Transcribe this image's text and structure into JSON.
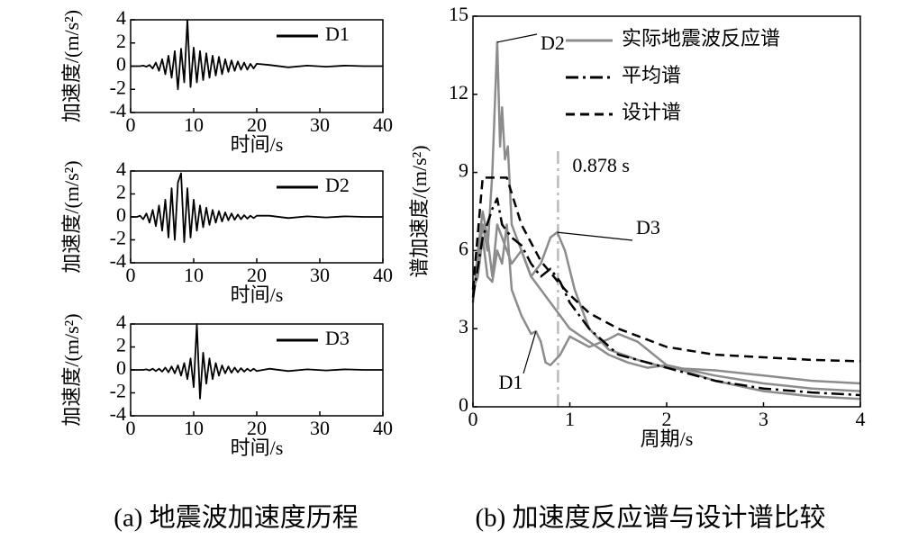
{
  "chart_data": [
    {
      "type": "line",
      "xlabel": "时间/s",
      "ylabel": "加速度/(m/s²)",
      "legend": "upper right",
      "xlim": [
        0,
        40
      ],
      "xticks": [
        0,
        10,
        20,
        30,
        40
      ],
      "ylim": [
        -4,
        4
      ],
      "yticks": [
        4,
        2,
        0,
        -2,
        -4
      ],
      "x": [
        0,
        0.5,
        1,
        1.5,
        2,
        2.5,
        3,
        3.5,
        4,
        4.5,
        5,
        5.5,
        6,
        6.5,
        7,
        7.5,
        8,
        8.5,
        9,
        9.5,
        10,
        10.5,
        11,
        11.5,
        12,
        12.5,
        13,
        13.5,
        14,
        14.5,
        15,
        15.5,
        16,
        16.5,
        17,
        17.5,
        18,
        18.5,
        19,
        19.5,
        20,
        22,
        25,
        28,
        31,
        34,
        37,
        40
      ],
      "series": [
        {
          "name": "D1",
          "color": "#000000",
          "values": [
            0,
            0,
            0,
            0,
            0.05,
            -0.05,
            0.1,
            -0.2,
            0.3,
            -0.4,
            0.6,
            -0.7,
            0.9,
            -1,
            1.3,
            -2,
            1.5,
            -1.4,
            4,
            -1.8,
            1.6,
            -1.4,
            1.3,
            -1.2,
            1.1,
            -1,
            0.9,
            -0.8,
            0.8,
            -0.7,
            0.6,
            -0.5,
            0.5,
            -0.4,
            0.4,
            -0.3,
            0.3,
            -0.3,
            0.2,
            -0.2,
            0.2,
            0.1,
            -0.1,
            0.05,
            -0.05,
            0.05,
            0,
            0
          ]
        }
      ]
    },
    {
      "type": "line",
      "xlabel": "时间/s",
      "ylabel": "加速度/(m/s²)",
      "legend": "upper right",
      "xlim": [
        0,
        40
      ],
      "xticks": [
        0,
        10,
        20,
        30,
        40
      ],
      "ylim": [
        -4,
        4
      ],
      "yticks": [
        4,
        2,
        0,
        -2,
        -4
      ],
      "x": [
        0,
        0.5,
        1,
        1.5,
        2,
        2.5,
        3,
        3.5,
        4,
        4.5,
        5,
        5.5,
        6,
        6.5,
        7,
        7.5,
        8,
        8.5,
        9,
        9.5,
        10,
        10.5,
        11,
        11.5,
        12,
        12.5,
        13,
        13.5,
        14,
        14.5,
        15,
        15.5,
        16,
        16.5,
        17,
        17.5,
        18,
        18.5,
        19,
        19.5,
        20,
        22,
        25,
        28,
        31,
        34,
        37,
        40
      ],
      "series": [
        {
          "name": "D2",
          "color": "#000000",
          "values": [
            0,
            0,
            0,
            0.1,
            -0.2,
            0.3,
            -0.5,
            0.6,
            -0.8,
            1,
            -1.2,
            1.5,
            -1.8,
            2.5,
            -2,
            3,
            3.8,
            -2.2,
            2.5,
            -1.8,
            1.5,
            -1.2,
            1,
            -0.9,
            0.8,
            -0.7,
            0.6,
            -0.5,
            0.5,
            -0.4,
            0.4,
            -0.3,
            0.3,
            -0.25,
            0.2,
            -0.2,
            0.15,
            -0.15,
            0.1,
            -0.1,
            0.1,
            0.1,
            -0.1,
            0.05,
            -0.05,
            0.05,
            0,
            0
          ]
        }
      ]
    },
    {
      "type": "line",
      "xlabel": "时间/s",
      "ylabel": "加速度/(m/s²)",
      "legend": "upper right",
      "xlim": [
        0,
        40
      ],
      "xticks": [
        0,
        10,
        20,
        30,
        40
      ],
      "ylim": [
        -4,
        4
      ],
      "yticks": [
        4,
        2,
        0,
        -2,
        -4
      ],
      "x": [
        0,
        0.5,
        1,
        1.5,
        2,
        2.5,
        3,
        3.5,
        4,
        4.5,
        5,
        5.5,
        6,
        6.5,
        7,
        7.5,
        8,
        8.5,
        9,
        9.5,
        10,
        10.5,
        11,
        11.5,
        12,
        12.5,
        13,
        13.5,
        14,
        14.5,
        15,
        15.5,
        16,
        16.5,
        17,
        17.5,
        18,
        18.5,
        19,
        19.5,
        20,
        22,
        25,
        28,
        31,
        34,
        37,
        40
      ],
      "series": [
        {
          "name": "D3",
          "color": "#000000",
          "values": [
            0,
            0,
            0,
            0,
            0,
            0.05,
            -0.05,
            0.1,
            -0.1,
            0.1,
            -0.15,
            0.2,
            -0.2,
            0.3,
            -0.3,
            0.4,
            -0.5,
            0.6,
            -0.8,
            1,
            -1.5,
            4,
            -2.5,
            1.5,
            -1.2,
            1,
            -0.8,
            0.6,
            -0.5,
            0.4,
            -0.3,
            0.3,
            -0.25,
            0.2,
            -0.2,
            0.15,
            -0.15,
            0.1,
            -0.1,
            0.1,
            -0.1,
            0.1,
            -0.1,
            0.05,
            -0.05,
            0.05,
            0,
            0
          ]
        }
      ]
    },
    {
      "type": "line",
      "xlabel": "周期/s",
      "ylabel": "谱加速度/(m/s²)",
      "legend": "upper right",
      "xlim": [
        0,
        4
      ],
      "xticks": [
        0,
        1,
        2,
        3,
        4
      ],
      "ylim": [
        0,
        15
      ],
      "yticks": [
        0,
        3,
        6,
        9,
        12,
        15
      ],
      "group_label": "实际地震波反应谱",
      "series": [
        {
          "name": "D1",
          "color": "#8c8c8c",
          "dash": "solid",
          "x": [
            0,
            0.05,
            0.1,
            0.15,
            0.2,
            0.25,
            0.3,
            0.35,
            0.4,
            0.5,
            0.6,
            0.65,
            0.7,
            0.75,
            0.8,
            0.9,
            1.0,
            1.2,
            1.4,
            1.5,
            1.7,
            2.0,
            2.5,
            3.0,
            3.5,
            4.0
          ],
          "values": [
            4.5,
            5,
            6.5,
            5,
            4.8,
            6,
            5.5,
            7,
            4.5,
            3.5,
            2.8,
            2.9,
            2.5,
            1.7,
            1.6,
            2,
            2.7,
            2.3,
            2.6,
            2.8,
            2.5,
            1.6,
            1.0,
            0.6,
            0.4,
            0.3
          ]
        },
        {
          "name": "D2",
          "color": "#8c8c8c",
          "dash": "solid",
          "x": [
            0,
            0.05,
            0.1,
            0.15,
            0.2,
            0.25,
            0.28,
            0.3,
            0.33,
            0.36,
            0.4,
            0.45,
            0.5,
            0.6,
            0.7,
            0.8,
            0.9,
            1.0,
            1.2,
            1.4,
            1.6,
            1.8,
            2.0,
            2.5,
            3.0,
            3.5,
            4.0
          ],
          "values": [
            4.3,
            5.5,
            7,
            6,
            9,
            14,
            10,
            11.5,
            9.5,
            10,
            7,
            6.5,
            6,
            5,
            4.5,
            4,
            3.5,
            3,
            2.5,
            2,
            1.7,
            1.5,
            1.6,
            1.2,
            0.9,
            0.7,
            0.6
          ]
        },
        {
          "name": "D3",
          "color": "#8c8c8c",
          "dash": "solid",
          "x": [
            0,
            0.05,
            0.1,
            0.15,
            0.2,
            0.25,
            0.3,
            0.4,
            0.5,
            0.6,
            0.7,
            0.8,
            0.87,
            0.95,
            1.05,
            1.2,
            1.4,
            1.7,
            2.0,
            2.5,
            3.0,
            3.5,
            4.0
          ],
          "values": [
            4,
            6,
            7.5,
            6.5,
            5,
            7,
            6.5,
            5.5,
            6,
            5,
            5.5,
            6.5,
            6.7,
            6,
            4.5,
            3,
            2.2,
            1.8,
            1.5,
            1.4,
            1.2,
            1.0,
            0.9
          ]
        },
        {
          "name": "平均谱",
          "color": "#000000",
          "dash": "dashdot",
          "x": [
            0,
            0.1,
            0.2,
            0.25,
            0.3,
            0.4,
            0.5,
            0.6,
            0.7,
            0.8,
            0.9,
            1.0,
            1.2,
            1.5,
            2.0,
            2.5,
            3.0,
            3.5,
            4.0
          ],
          "values": [
            4.2,
            6.5,
            7.6,
            8,
            7,
            6.5,
            6.2,
            5.5,
            5,
            5.3,
            4.8,
            4,
            3,
            2,
            1.5,
            1.0,
            0.7,
            0.55,
            0.45
          ]
        },
        {
          "name": "设计谱",
          "color": "#000000",
          "dash": "dashed",
          "x": [
            0,
            0.1,
            0.2,
            0.25,
            0.35,
            0.5,
            0.7,
            0.878,
            1.0,
            1.2,
            1.5,
            2.0,
            2.5,
            3.0,
            3.5,
            4.0
          ],
          "values": [
            4.5,
            8.8,
            8.8,
            8.8,
            8.8,
            7.0,
            5.6,
            4.8,
            4.3,
            3.6,
            3.0,
            2.3,
            2.0,
            1.9,
            1.8,
            1.75
          ]
        }
      ],
      "markers": [
        {
          "x": 0.878,
          "label": "0.878 s",
          "color": "#bbbbbb"
        }
      ]
    }
  ],
  "captions": [
    "(a) 地震波加速度历程",
    "(b) 加速度反应谱与设计谱比较"
  ]
}
